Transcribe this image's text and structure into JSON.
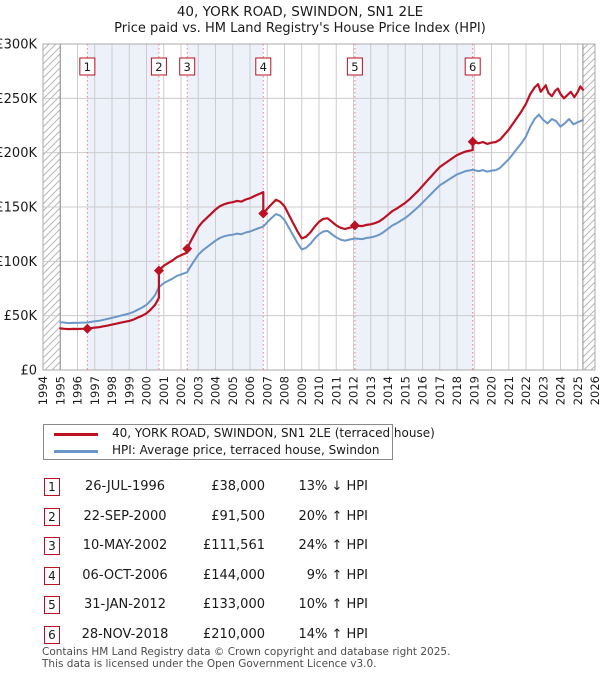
{
  "title": "40, YORK ROAD, SWINDON, SN1 2LE",
  "subtitle": "Price paid vs. HM Land Registry's House Price Index (HPI)",
  "legend": [
    {
      "label": "40, YORK ROAD, SWINDON, SN1 2LE (terraced house)",
      "color": "#bb1122"
    },
    {
      "label": "HPI: Average price, terraced house, Swindon",
      "color": "#6b96c8"
    }
  ],
  "transactions": [
    {
      "num": "1",
      "date": "26-JUL-1996",
      "price": "£38,000",
      "hpi": "13% ↓ HPI"
    },
    {
      "num": "2",
      "date": "22-SEP-2000",
      "price": "£91,500",
      "hpi": "20% ↑ HPI"
    },
    {
      "num": "3",
      "date": "10-MAY-2002",
      "price": "£111,561",
      "hpi": "24% ↑ HPI"
    },
    {
      "num": "4",
      "date": "06-OCT-2006",
      "price": "£144,000",
      "hpi": "9% ↑ HPI"
    },
    {
      "num": "5",
      "date": "31-JAN-2012",
      "price": "£133,000",
      "hpi": "10% ↑ HPI"
    },
    {
      "num": "6",
      "date": "28-NOV-2018",
      "price": "£210,000",
      "hpi": "14% ↑ HPI"
    }
  ],
  "footer": [
    "Contains HM Land Registry data © Crown copyright and database right 2025.",
    "This data is licensed under the Open Government Licence v3.0."
  ],
  "chart_data": {
    "type": "line",
    "x_range": [
      1994,
      2026
    ],
    "y_range_gbp_k": [
      0,
      300
    ],
    "y_ticks": [
      [
        "£0",
        0
      ],
      [
        "£50K",
        50
      ],
      [
        "£100K",
        100
      ],
      [
        "£150K",
        150
      ],
      [
        "£200K",
        200
      ],
      [
        "£250K",
        250
      ],
      [
        "£300K",
        300
      ]
    ],
    "x_ticks": [
      1994,
      1995,
      1996,
      1997,
      1998,
      1999,
      2000,
      2001,
      2002,
      2003,
      2004,
      2005,
      2006,
      2007,
      2008,
      2009,
      2010,
      2011,
      2012,
      2013,
      2014,
      2015,
      2016,
      2017,
      2018,
      2019,
      2020,
      2021,
      2022,
      2023,
      2024,
      2025,
      2026
    ],
    "grid": true,
    "band_color": "#edf1fa",
    "sale_line_color": "#f08080",
    "grid_color": "#cccccc",
    "frame_color": "#aaaaaa",
    "hatch_color": "#b8b8b8",
    "shaded_periods": [
      [
        1996.57,
        2000.72
      ],
      [
        2002.36,
        2006.77
      ],
      [
        2012.08,
        2018.91
      ]
    ],
    "hatched_periods": [
      [
        1994,
        1995.0
      ],
      [
        2025.3,
        2026
      ]
    ],
    "sales": [
      {
        "n": "1",
        "year": 1996.57,
        "price_k": 38.0
      },
      {
        "n": "2",
        "year": 2000.72,
        "price_k": 91.5
      },
      {
        "n": "3",
        "year": 2002.36,
        "price_k": 111.6
      },
      {
        "n": "4",
        "year": 2006.77,
        "price_k": 144.0
      },
      {
        "n": "5",
        "year": 2012.08,
        "price_k": 133.0
      },
      {
        "n": "6",
        "year": 2018.91,
        "price_k": 210.0
      }
    ],
    "series": [
      {
        "name": "40, YORK ROAD, SWINDON, SN1 2LE (terraced house)",
        "color": "#bb1122",
        "width": 2.2,
        "points_gbp_k": [
          [
            1995.0,
            38.3
          ],
          [
            1995.25,
            37.9
          ],
          [
            1995.5,
            37.6
          ],
          [
            1995.75,
            37.8
          ],
          [
            1996.0,
            37.7
          ],
          [
            1996.25,
            37.9
          ],
          [
            1996.57,
            38.0
          ],
          [
            1996.75,
            38.4
          ],
          [
            1997.0,
            39.0
          ],
          [
            1997.25,
            39.4
          ],
          [
            1997.5,
            40.2
          ],
          [
            1997.75,
            40.9
          ],
          [
            1998.0,
            41.8
          ],
          [
            1998.25,
            42.6
          ],
          [
            1998.5,
            43.5
          ],
          [
            1998.75,
            44.4
          ],
          [
            1999.0,
            45.2
          ],
          [
            1999.25,
            46.5
          ],
          [
            1999.5,
            48.3
          ],
          [
            1999.75,
            50.0
          ],
          [
            2000.0,
            52.2
          ],
          [
            2000.25,
            55.7
          ],
          [
            2000.5,
            60.0
          ],
          [
            2000.72,
            66.4
          ],
          [
            2000.72,
            91.5
          ],
          [
            2001.0,
            96.0
          ],
          [
            2001.25,
            98.4
          ],
          [
            2001.5,
            100.8
          ],
          [
            2001.75,
            103.8
          ],
          [
            2002.0,
            105.6
          ],
          [
            2002.36,
            108.0
          ],
          [
            2002.36,
            111.6
          ],
          [
            2002.5,
            116.6
          ],
          [
            2002.75,
            124.0
          ],
          [
            2003.0,
            131.4
          ],
          [
            2003.25,
            136.4
          ],
          [
            2003.5,
            140.1
          ],
          [
            2003.75,
            143.8
          ],
          [
            2004.0,
            147.6
          ],
          [
            2004.25,
            150.7
          ],
          [
            2004.5,
            152.5
          ],
          [
            2004.75,
            153.8
          ],
          [
            2005.0,
            154.4
          ],
          [
            2005.25,
            155.6
          ],
          [
            2005.5,
            155.0
          ],
          [
            2005.75,
            156.9
          ],
          [
            2006.0,
            158.1
          ],
          [
            2006.25,
            160.0
          ],
          [
            2006.5,
            161.8
          ],
          [
            2006.77,
            163.7
          ],
          [
            2006.77,
            144.0
          ],
          [
            2007.0,
            148.4
          ],
          [
            2007.25,
            152.7
          ],
          [
            2007.5,
            156.6
          ],
          [
            2007.75,
            154.9
          ],
          [
            2008.0,
            150.6
          ],
          [
            2008.25,
            142.9
          ],
          [
            2008.5,
            135.3
          ],
          [
            2008.75,
            127.6
          ],
          [
            2009.0,
            121.1
          ],
          [
            2009.25,
            122.7
          ],
          [
            2009.5,
            126.6
          ],
          [
            2009.75,
            132.0
          ],
          [
            2010.0,
            136.4
          ],
          [
            2010.25,
            139.1
          ],
          [
            2010.5,
            139.6
          ],
          [
            2010.75,
            136.4
          ],
          [
            2011.0,
            133.1
          ],
          [
            2011.25,
            130.9
          ],
          [
            2011.5,
            129.8
          ],
          [
            2011.75,
            130.9
          ],
          [
            2012.08,
            132.0
          ],
          [
            2012.08,
            133.0
          ],
          [
            2012.5,
            132.4
          ],
          [
            2012.75,
            133.5
          ],
          [
            2013.0,
            134.1
          ],
          [
            2013.25,
            135.2
          ],
          [
            2013.5,
            136.8
          ],
          [
            2013.75,
            139.6
          ],
          [
            2014.0,
            142.9
          ],
          [
            2014.25,
            146.2
          ],
          [
            2014.5,
            148.4
          ],
          [
            2014.75,
            151.1
          ],
          [
            2015.0,
            153.9
          ],
          [
            2015.25,
            157.2
          ],
          [
            2015.5,
            161.0
          ],
          [
            2015.75,
            164.9
          ],
          [
            2016.0,
            169.3
          ],
          [
            2016.25,
            173.7
          ],
          [
            2016.5,
            178.1
          ],
          [
            2016.75,
            182.5
          ],
          [
            2017.0,
            186.8
          ],
          [
            2017.25,
            189.6
          ],
          [
            2017.5,
            192.3
          ],
          [
            2017.75,
            195.1
          ],
          [
            2018.0,
            197.8
          ],
          [
            2018.25,
            199.5
          ],
          [
            2018.5,
            201.1
          ],
          [
            2018.91,
            202.4
          ],
          [
            2018.91,
            210.0
          ],
          [
            2019.25,
            208.6
          ],
          [
            2019.5,
            209.8
          ],
          [
            2019.75,
            208.1
          ],
          [
            2020.0,
            209.2
          ],
          [
            2020.25,
            209.8
          ],
          [
            2020.5,
            212.0
          ],
          [
            2020.75,
            216.6
          ],
          [
            2021.0,
            221.2
          ],
          [
            2021.25,
            226.9
          ],
          [
            2021.5,
            232.6
          ],
          [
            2021.75,
            238.3
          ],
          [
            2022.0,
            245.1
          ],
          [
            2022.25,
            254.0
          ],
          [
            2022.5,
            260.0
          ],
          [
            2022.7,
            263.0
          ],
          [
            2022.85,
            256.0
          ],
          [
            2023.0,
            259.0
          ],
          [
            2023.15,
            262.0
          ],
          [
            2023.3,
            255.0
          ],
          [
            2023.5,
            252.0
          ],
          [
            2023.7,
            257.0
          ],
          [
            2023.85,
            259.0
          ],
          [
            2024.0,
            254.0
          ],
          [
            2024.2,
            250.0
          ],
          [
            2024.4,
            253.0
          ],
          [
            2024.6,
            256.0
          ],
          [
            2024.8,
            251.0
          ],
          [
            2025.0,
            256.0
          ],
          [
            2025.15,
            261.0
          ],
          [
            2025.3,
            258.0
          ]
        ]
      },
      {
        "name": "HPI: Average price, terraced house, Swindon",
        "color": "#6b96c8",
        "width": 2,
        "points_gbp_k": [
          [
            1995.0,
            44.0
          ],
          [
            1995.25,
            43.6
          ],
          [
            1995.5,
            43.2
          ],
          [
            1995.75,
            43.5
          ],
          [
            1996.0,
            43.3
          ],
          [
            1996.25,
            43.6
          ],
          [
            1996.57,
            43.7
          ],
          [
            1996.75,
            44.2
          ],
          [
            1997.0,
            44.8
          ],
          [
            1997.25,
            45.3
          ],
          [
            1997.5,
            46.2
          ],
          [
            1997.75,
            47.0
          ],
          [
            1998.0,
            48.0
          ],
          [
            1998.25,
            49.0
          ],
          [
            1998.5,
            50.0
          ],
          [
            1998.75,
            51.0
          ],
          [
            1999.0,
            52.0
          ],
          [
            1999.25,
            53.5
          ],
          [
            1999.5,
            55.5
          ],
          [
            1999.75,
            57.5
          ],
          [
            2000.0,
            60.0
          ],
          [
            2000.25,
            64.0
          ],
          [
            2000.5,
            69.0
          ],
          [
            2000.72,
            76.3
          ],
          [
            2001.0,
            80.0
          ],
          [
            2001.25,
            82.0
          ],
          [
            2001.5,
            84.0
          ],
          [
            2001.75,
            86.5
          ],
          [
            2002.0,
            88.0
          ],
          [
            2002.36,
            90.0
          ],
          [
            2002.5,
            94.0
          ],
          [
            2002.75,
            100.0
          ],
          [
            2003.0,
            106.0
          ],
          [
            2003.25,
            110.0
          ],
          [
            2003.5,
            113.0
          ],
          [
            2003.75,
            116.0
          ],
          [
            2004.0,
            119.0
          ],
          [
            2004.25,
            121.5
          ],
          [
            2004.5,
            123.0
          ],
          [
            2004.75,
            124.0
          ],
          [
            2005.0,
            124.5
          ],
          [
            2005.25,
            125.5
          ],
          [
            2005.5,
            125.0
          ],
          [
            2005.75,
            126.5
          ],
          [
            2006.0,
            127.5
          ],
          [
            2006.25,
            129.0
          ],
          [
            2006.5,
            130.5
          ],
          [
            2006.77,
            132.0
          ],
          [
            2007.0,
            136.0
          ],
          [
            2007.25,
            140.0
          ],
          [
            2007.5,
            143.5
          ],
          [
            2007.75,
            142.0
          ],
          [
            2008.0,
            138.0
          ],
          [
            2008.25,
            131.0
          ],
          [
            2008.5,
            124.0
          ],
          [
            2008.75,
            117.0
          ],
          [
            2009.0,
            111.0
          ],
          [
            2009.25,
            112.5
          ],
          [
            2009.5,
            116.0
          ],
          [
            2009.75,
            121.0
          ],
          [
            2010.0,
            125.0
          ],
          [
            2010.25,
            127.5
          ],
          [
            2010.5,
            128.0
          ],
          [
            2010.75,
            125.0
          ],
          [
            2011.0,
            122.0
          ],
          [
            2011.25,
            120.0
          ],
          [
            2011.5,
            119.0
          ],
          [
            2011.75,
            120.0
          ],
          [
            2012.08,
            121.0
          ],
          [
            2012.5,
            120.5
          ],
          [
            2012.75,
            121.5
          ],
          [
            2013.0,
            122.0
          ],
          [
            2013.25,
            123.0
          ],
          [
            2013.5,
            124.5
          ],
          [
            2013.75,
            127.0
          ],
          [
            2014.0,
            130.0
          ],
          [
            2014.25,
            133.0
          ],
          [
            2014.5,
            135.0
          ],
          [
            2014.75,
            137.5
          ],
          [
            2015.0,
            140.0
          ],
          [
            2015.25,
            143.0
          ],
          [
            2015.5,
            146.5
          ],
          [
            2015.75,
            150.0
          ],
          [
            2016.0,
            154.0
          ],
          [
            2016.25,
            158.0
          ],
          [
            2016.5,
            162.0
          ],
          [
            2016.75,
            166.0
          ],
          [
            2017.0,
            170.0
          ],
          [
            2017.25,
            172.5
          ],
          [
            2017.5,
            175.0
          ],
          [
            2017.75,
            177.5
          ],
          [
            2018.0,
            180.0
          ],
          [
            2018.25,
            181.5
          ],
          [
            2018.5,
            183.0
          ],
          [
            2018.91,
            184.2
          ],
          [
            2019.25,
            183.0
          ],
          [
            2019.5,
            184.0
          ],
          [
            2019.75,
            182.5
          ],
          [
            2020.0,
            183.5
          ],
          [
            2020.25,
            184.0
          ],
          [
            2020.5,
            186.0
          ],
          [
            2020.75,
            190.0
          ],
          [
            2021.0,
            194.0
          ],
          [
            2021.25,
            199.0
          ],
          [
            2021.5,
            204.0
          ],
          [
            2021.75,
            209.0
          ],
          [
            2022.0,
            215.0
          ],
          [
            2022.25,
            224.0
          ],
          [
            2022.5,
            231.0
          ],
          [
            2022.75,
            235.0
          ],
          [
            2023.0,
            230.0
          ],
          [
            2023.25,
            227.0
          ],
          [
            2023.5,
            231.0
          ],
          [
            2023.75,
            229.0
          ],
          [
            2024.0,
            224.0
          ],
          [
            2024.25,
            227.0
          ],
          [
            2024.5,
            231.0
          ],
          [
            2024.75,
            226.0
          ],
          [
            2025.0,
            228.0
          ],
          [
            2025.3,
            230.0
          ]
        ]
      }
    ]
  }
}
